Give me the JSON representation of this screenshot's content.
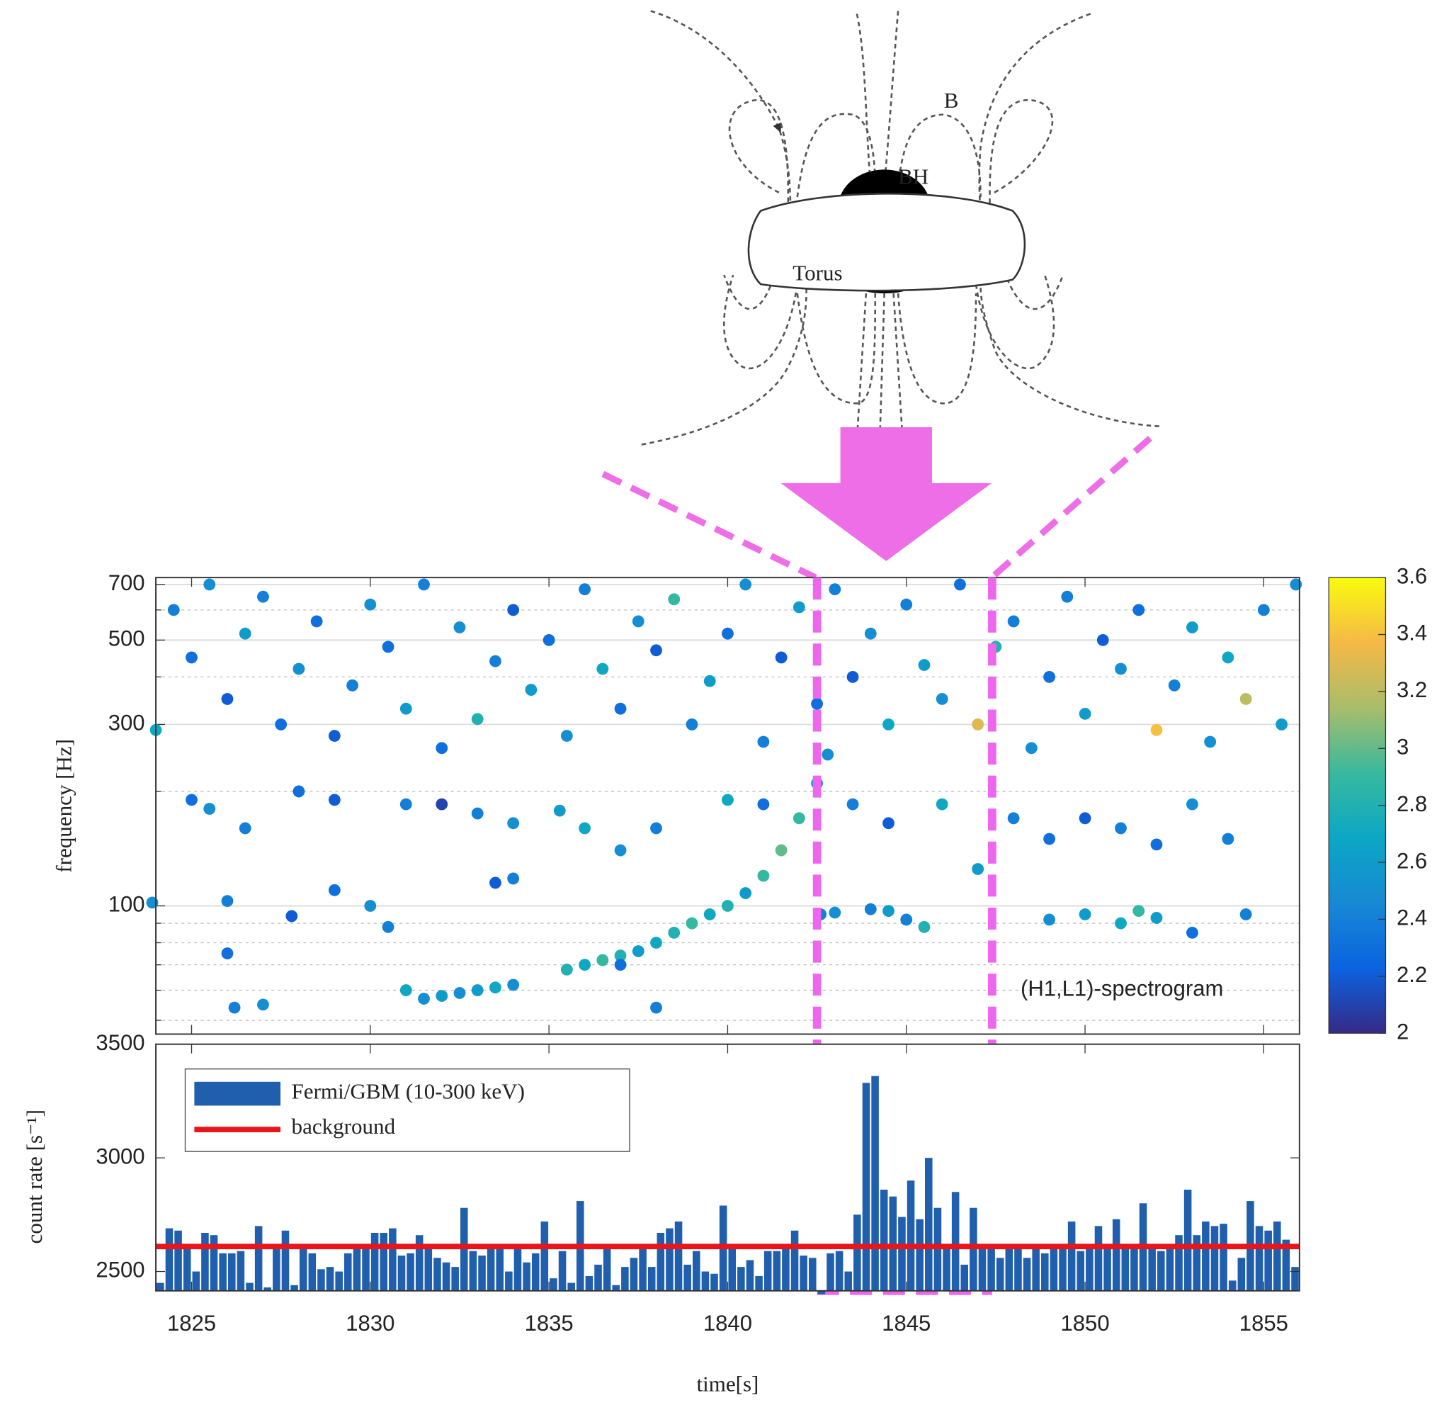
{
  "diagram": {
    "labels": [
      "B",
      "BH",
      "Torus"
    ]
  },
  "chart_data": [
    {
      "type": "scatter",
      "ylabel": "frequency [Hz]",
      "annotation": "(H1,L1)-spectrogram",
      "xlim": [
        1824,
        1856
      ],
      "ylim": [
        46,
        730
      ],
      "y_log": true,
      "yticks": [
        100,
        300,
        500,
        700
      ],
      "yminor": [
        50,
        60,
        70,
        80,
        90,
        200,
        400,
        600
      ],
      "grid": true,
      "highlight": [
        1842.5,
        1847.4
      ],
      "highlight_color": "#ee66ee",
      "colormap": [
        "#352a87",
        "#0b63e0",
        "#1789d4",
        "#0ca7c5",
        "#38b99e",
        "#a9bd6a",
        "#f5b946",
        "#f9fb0e"
      ],
      "colorbar": {
        "lim": [
          2,
          3.6
        ],
        "ticks": [
          2,
          2.2,
          2.4,
          2.6,
          2.8,
          3,
          3.2,
          3.4,
          3.6
        ]
      },
      "x": [
        1831.5,
        1832,
        1832.5,
        1833,
        1833.5,
        1834,
        1835.5,
        1836,
        1836.5,
        1837,
        1837.5,
        1838,
        1838.5,
        1839,
        1839.5,
        1840,
        1840.5,
        1841,
        1841.5,
        1842,
        1842.5,
        1842.8,
        1842.6,
        1843,
        1844,
        1844.5,
        1845,
        1845.5,
        1826,
        1826.2,
        1827,
        1827.8,
        1826,
        1829,
        1830,
        1830.5,
        1831,
        1833.5,
        1834,
        1837,
        1838,
        1849,
        1850,
        1851,
        1851.5,
        1852,
        1853,
        1854.5,
        1823.9,
        1825,
        1825.5,
        1826.5,
        1828,
        1829,
        1831,
        1832,
        1833,
        1834,
        1835.3,
        1836,
        1837,
        1838,
        1840,
        1841,
        1843.5,
        1844.5,
        1846,
        1847,
        1848,
        1849,
        1850,
        1851,
        1852,
        1853,
        1854,
        1824,
        1824.5,
        1825,
        1825.5,
        1826,
        1826.5,
        1827,
        1827.5,
        1828,
        1828.5,
        1829,
        1829.5,
        1830,
        1830.5,
        1831,
        1831.5,
        1832,
        1832.5,
        1833,
        1833.5,
        1834,
        1834.5,
        1835,
        1835.5,
        1836,
        1836.5,
        1837,
        1837.5,
        1838,
        1838.5,
        1839,
        1839.5,
        1840,
        1840.5,
        1841,
        1841.5,
        1842,
        1842.5,
        1843,
        1843.5,
        1844,
        1844.5,
        1845,
        1845.5,
        1846,
        1846.5,
        1847,
        1847.5,
        1848,
        1848.5,
        1849,
        1849.5,
        1850,
        1850.5,
        1851,
        1851.5,
        1852,
        1852.5,
        1853,
        1853.5,
        1854,
        1854.5,
        1855,
        1855.5,
        1855.9
      ],
      "values": [
        57,
        58,
        59,
        60,
        61,
        62,
        68,
        70,
        72,
        74,
        76,
        80,
        85,
        90,
        95,
        100,
        108,
        120,
        140,
        170,
        210,
        250,
        95,
        96,
        98,
        97,
        92,
        88,
        75,
        54,
        55,
        94,
        103,
        110,
        100,
        88,
        60,
        115,
        118,
        70,
        54,
        92,
        95,
        90,
        97,
        93,
        85,
        95,
        102,
        190,
        180,
        160,
        200,
        190,
        185,
        185,
        175,
        165,
        178,
        160,
        140,
        160,
        190,
        185,
        185,
        165,
        185,
        125,
        170,
        150,
        170,
        160,
        145,
        185,
        150,
        290,
        600,
        450,
        700,
        350,
        520,
        650,
        300,
        420,
        560,
        280,
        380,
        620,
        480,
        330,
        700,
        260,
        540,
        310,
        440,
        600,
        370,
        500,
        280,
        680,
        420,
        330,
        560,
        470,
        640,
        300,
        390,
        520,
        700,
        270,
        450,
        610,
        340,
        680,
        400,
        520,
        300,
        620,
        430,
        350,
        700,
        300,
        480,
        560,
        260,
        400,
        650,
        320,
        500,
        420,
        600,
        290,
        380,
        540,
        270,
        450,
        350,
        600,
        300,
        700
      ],
      "c": [
        2.5,
        2.6,
        2.5,
        2.6,
        2.7,
        2.5,
        2.8,
        2.7,
        2.9,
        2.8,
        2.6,
        2.7,
        2.8,
        2.9,
        2.7,
        2.8,
        2.6,
        2.9,
        3,
        2.9,
        2.6,
        2.5,
        2.4,
        2.5,
        2.4,
        2.6,
        2.4,
        2.8,
        2.3,
        2.4,
        2.5,
        2.2,
        2.4,
        2.3,
        2.5,
        2.4,
        2.7,
        2.2,
        2.4,
        2.3,
        2.4,
        2.5,
        2.6,
        2.7,
        2.9,
        2.6,
        2.3,
        2.4,
        2.5,
        2.3,
        2.5,
        2.4,
        2.3,
        2.2,
        2.4,
        2.1,
        2.4,
        2.5,
        2.6,
        2.7,
        2.5,
        2.4,
        2.7,
        2.3,
        2.4,
        2.2,
        2.7,
        2.6,
        2.4,
        2.3,
        2.2,
        2.4,
        2.3,
        2.5,
        2.4,
        2.7,
        2.4,
        2.3,
        2.5,
        2.2,
        2.6,
        2.4,
        2.3,
        2.5,
        2.3,
        2.2,
        2.4,
        2.5,
        2.3,
        2.6,
        2.4,
        2.3,
        2.5,
        2.8,
        2.4,
        2.2,
        2.6,
        2.3,
        2.5,
        2.4,
        2.7,
        2.3,
        2.5,
        2.2,
        2.9,
        2.4,
        2.6,
        2.3,
        2.5,
        2.4,
        2.2,
        2.6,
        2.3,
        2.4,
        2.2,
        2.5,
        2.7,
        2.4,
        2.6,
        2.5,
        2.3,
        3.3,
        2.8,
        2.4,
        2.5,
        2.3,
        2.4,
        2.6,
        2.2,
        2.5,
        2.3,
        3.4,
        2.4,
        2.6,
        2.5,
        2.7,
        3.2,
        2.4,
        2.6,
        2.5
      ]
    },
    {
      "type": "histogram",
      "xlabel": "time[s]",
      "ylabel": "count rate [s⁻¹]",
      "xlim": [
        1824,
        1856
      ],
      "xticks": [
        1825,
        1830,
        1835,
        1840,
        1845,
        1850,
        1855
      ],
      "ylim": [
        2415,
        3500
      ],
      "yticks": [
        2500,
        3000,
        3500
      ],
      "legend": "upper left",
      "bins": [
        1824,
        1824.25,
        1824.5,
        1824.75,
        1825,
        1825.25,
        1825.5,
        1825.75,
        1826,
        1826.25,
        1826.5,
        1826.75,
        1827,
        1827.25,
        1827.5,
        1827.75,
        1828,
        1828.25,
        1828.5,
        1828.75,
        1829,
        1829.25,
        1829.5,
        1829.75,
        1830,
        1830.25,
        1830.5,
        1830.75,
        1831,
        1831.25,
        1831.5,
        1831.75,
        1832,
        1832.25,
        1832.5,
        1832.75,
        1833,
        1833.25,
        1833.5,
        1833.75,
        1834,
        1834.25,
        1834.5,
        1834.75,
        1835,
        1835.25,
        1835.5,
        1835.75,
        1836,
        1836.25,
        1836.5,
        1836.75,
        1837,
        1837.25,
        1837.5,
        1837.75,
        1838,
        1838.25,
        1838.5,
        1838.75,
        1839,
        1839.25,
        1839.5,
        1839.75,
        1840,
        1840.25,
        1840.5,
        1840.75,
        1841,
        1841.25,
        1841.5,
        1841.75,
        1842,
        1842.25,
        1842.5,
        1842.75,
        1843,
        1843.25,
        1843.5,
        1843.75,
        1844,
        1844.25,
        1844.5,
        1844.75,
        1845,
        1845.25,
        1845.5,
        1845.75,
        1846,
        1846.25,
        1846.5,
        1846.75,
        1847,
        1847.25,
        1847.5,
        1847.75,
        1848,
        1848.25,
        1848.5,
        1848.75,
        1849,
        1849.25,
        1849.5,
        1849.75,
        1850,
        1850.25,
        1850.5,
        1850.75,
        1851,
        1851.25,
        1851.5,
        1851.75,
        1852,
        1852.25,
        1852.5,
        1852.75,
        1853,
        1853.25,
        1853.5,
        1853.75,
        1854,
        1854.25,
        1854.5,
        1854.75,
        1855,
        1855.25,
        1855.5,
        1855.75,
        1856
      ],
      "series": [
        {
          "name": "Fermi/GBM (10-300 keV)",
          "color": "#1f5fad",
          "values": [
            2450,
            2690,
            2680,
            2600,
            2500,
            2670,
            2660,
            2580,
            2580,
            2590,
            2450,
            2700,
            2430,
            2600,
            2680,
            2440,
            2600,
            2580,
            2510,
            2520,
            2500,
            2580,
            2600,
            2600,
            2670,
            2670,
            2690,
            2570,
            2580,
            2660,
            2600,
            2560,
            2540,
            2520,
            2780,
            2590,
            2570,
            2600,
            2610,
            2500,
            2600,
            2540,
            2580,
            2720,
            2470,
            2590,
            2450,
            2810,
            2480,
            2530,
            2600,
            2440,
            2520,
            2560,
            2610,
            2520,
            2670,
            2690,
            2720,
            2530,
            2590,
            2500,
            2490,
            2790,
            2610,
            2520,
            2550,
            2480,
            2590,
            2590,
            2620,
            2680,
            2570,
            2560,
            2400,
            2580,
            2590,
            2500,
            2750,
            3330,
            3360,
            2860,
            2830,
            2740,
            2900,
            2730,
            3000,
            2780,
            2600,
            2850,
            2530,
            2780,
            2600,
            2600,
            2560,
            2600,
            2600,
            2560,
            2600,
            2580,
            2600,
            2610,
            2720,
            2590,
            2620,
            2700,
            2600,
            2730,
            2600,
            2620,
            2800,
            2600,
            2590,
            2600,
            2660,
            2860,
            2660,
            2720,
            2700,
            2710,
            2460,
            2560,
            2810,
            2700,
            2680,
            2720,
            2640,
            2520
          ]
        }
      ],
      "background": {
        "name": "background",
        "value": 2610,
        "color": "#e8151b"
      }
    }
  ]
}
